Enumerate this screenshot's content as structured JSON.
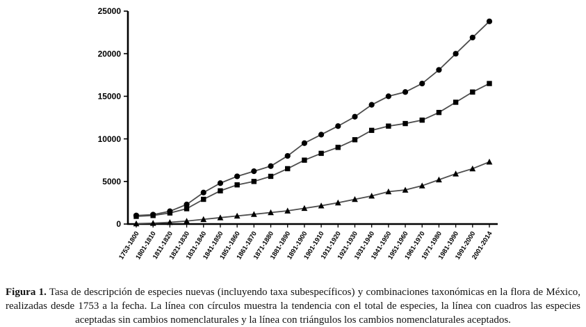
{
  "chart_data": {
    "type": "line",
    "title": "",
    "xlabel": "",
    "ylabel": "",
    "ylim": [
      0,
      25000
    ],
    "yticks": [
      0,
      5000,
      10000,
      15000,
      20000,
      25000
    ],
    "grid": false,
    "legend_position": "none",
    "axis_color": "#000000",
    "line_color": "#4d4d4d",
    "marker_color": "#000000",
    "categories": [
      "1753-1800",
      "1801-1810",
      "1811-1820",
      "1821-1830",
      "1831-1840",
      "1841-1850",
      "1851-1860",
      "1861-1870",
      "1871-1880",
      "1881-1890",
      "1891-1900",
      "1901-1910",
      "1911-1920",
      "1921-1930",
      "1931-1940",
      "1941-1950",
      "1951-1960",
      "1961-1970",
      "1971-1980",
      "1981-1990",
      "1991-2000",
      "2001-2014"
    ],
    "series": [
      {
        "name": "Total de especies",
        "marker": "circle",
        "values": [
          1000,
          1100,
          1500,
          2300,
          3700,
          4800,
          5600,
          6200,
          6800,
          8000,
          9500,
          10500,
          11500,
          12600,
          14000,
          15000,
          15500,
          16500,
          18100,
          20000,
          21900,
          23800
        ]
      },
      {
        "name": "Especies aceptadas sin cambios nomenclaturales",
        "marker": "square",
        "values": [
          900,
          1000,
          1300,
          1800,
          2900,
          3900,
          4600,
          5000,
          5600,
          6500,
          7500,
          8300,
          9000,
          9900,
          11000,
          11500,
          11800,
          12200,
          13100,
          14300,
          15500,
          16500
        ]
      },
      {
        "name": "Cambios nomenclaturales aceptados",
        "marker": "triangle",
        "values": [
          50,
          100,
          200,
          350,
          550,
          750,
          950,
          1150,
          1350,
          1550,
          1850,
          2150,
          2500,
          2900,
          3300,
          3800,
          4000,
          4500,
          5200,
          5900,
          6500,
          7300
        ]
      }
    ]
  },
  "caption": {
    "label": "Figura 1.",
    "text": " Tasa de descripción de especies nuevas (incluyendo taxa subespecíficos) y combinaciones taxonómicas en la flora de México, realizadas desde 1753 a la fecha. La línea con círculos muestra la tendencia con el total de especies, la línea con cuadros las especies aceptadas sin cambios nomenclaturales y la línea con triángulos los cambios nomenclaturales aceptados."
  }
}
